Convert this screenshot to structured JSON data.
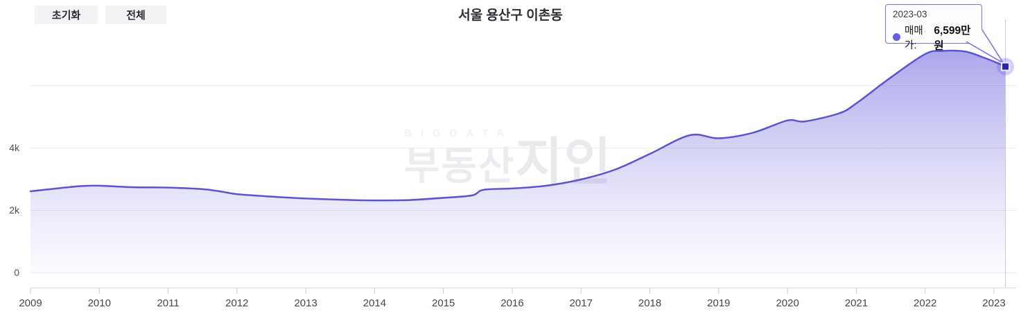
{
  "header": {
    "reset_button": "초기화",
    "all_button": "전체",
    "title": "서울 용산구 이촌동"
  },
  "icons": {
    "menu": "hamburger-menu-icon"
  },
  "tooltip": {
    "date": "2023-03",
    "series_label": "매매가:",
    "value_text": "6,599만원",
    "dot_color": "#6a5ce8",
    "border_color": "#7a71e0"
  },
  "watermark": {
    "line1": "BIGDATA",
    "line2": "부동산",
    "line3": "지인"
  },
  "chart_data": {
    "type": "area",
    "title": "서울 용산구 이촌동",
    "series_name": "매매가",
    "unit": "만원",
    "x_range": [
      "2009-01",
      "2023-03"
    ],
    "ylim": [
      0,
      8000
    ],
    "x_ticks": [
      "2009",
      "2010",
      "2011",
      "2012",
      "2013",
      "2014",
      "2015",
      "2016",
      "2017",
      "2018",
      "2019",
      "2020",
      "2021",
      "2022",
      "2023"
    ],
    "y_ticks": [
      {
        "label": "0",
        "value": 0
      },
      {
        "label": "2k",
        "value": 2000
      },
      {
        "label": "4k",
        "value": 4000
      }
    ],
    "y_gridline_values": [
      0,
      2000,
      4000,
      6000
    ],
    "grid": true,
    "legend": "none",
    "line_color": "#5b52d6",
    "fill_top_color": "rgba(101,92,221,0.55)",
    "fill_bottom_color": "rgba(160,150,235,0.04)",
    "points": [
      {
        "date": "2009-01",
        "value": 2600
      },
      {
        "date": "2009-04",
        "value": 2660
      },
      {
        "date": "2009-07",
        "value": 2720
      },
      {
        "date": "2009-10",
        "value": 2770
      },
      {
        "date": "2010-01",
        "value": 2780
      },
      {
        "date": "2010-07",
        "value": 2730
      },
      {
        "date": "2011-01",
        "value": 2720
      },
      {
        "date": "2011-07",
        "value": 2670
      },
      {
        "date": "2011-10",
        "value": 2600
      },
      {
        "date": "2012-01",
        "value": 2510
      },
      {
        "date": "2012-07",
        "value": 2430
      },
      {
        "date": "2013-01",
        "value": 2370
      },
      {
        "date": "2013-07",
        "value": 2330
      },
      {
        "date": "2014-01",
        "value": 2310
      },
      {
        "date": "2014-07",
        "value": 2320
      },
      {
        "date": "2015-01",
        "value": 2390
      },
      {
        "date": "2015-06",
        "value": 2470
      },
      {
        "date": "2015-08",
        "value": 2650
      },
      {
        "date": "2016-01",
        "value": 2690
      },
      {
        "date": "2016-07",
        "value": 2780
      },
      {
        "date": "2017-01",
        "value": 2980
      },
      {
        "date": "2017-07",
        "value": 3300
      },
      {
        "date": "2018-01",
        "value": 3800
      },
      {
        "date": "2018-08",
        "value": 4400
      },
      {
        "date": "2019-01",
        "value": 4300
      },
      {
        "date": "2019-07",
        "value": 4480
      },
      {
        "date": "2020-01",
        "value": 4870
      },
      {
        "date": "2020-04",
        "value": 4840
      },
      {
        "date": "2020-10",
        "value": 5100
      },
      {
        "date": "2021-01",
        "value": 5420
      },
      {
        "date": "2021-07",
        "value": 6250
      },
      {
        "date": "2022-01",
        "value": 7000
      },
      {
        "date": "2022-04",
        "value": 7100
      },
      {
        "date": "2022-08",
        "value": 7080
      },
      {
        "date": "2022-11",
        "value": 6900
      },
      {
        "date": "2023-01",
        "value": 6760
      },
      {
        "date": "2023-03",
        "value": 6599
      }
    ],
    "highlighted_point": {
      "date": "2023-03",
      "value": 6599
    }
  }
}
